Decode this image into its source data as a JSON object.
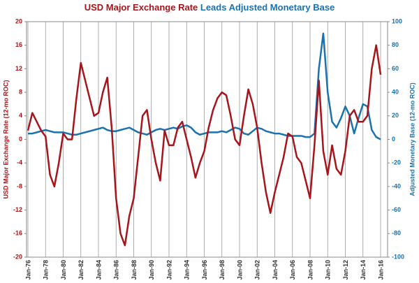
{
  "chart_data": {
    "type": "line",
    "title": [
      "USD Major Exchange Rate",
      "Leads Adjusted Monetary Base"
    ],
    "ylabel": "USD Major Exchange Rate (12-mo ROC)",
    "y2label": "Adjusted Monetary Base (12-mo ROC)",
    "x": [
      "Jan-76",
      "Jul-76",
      "Jan-77",
      "Jul-77",
      "Jan-78",
      "Jul-78",
      "Jan-79",
      "Jul-79",
      "Jan-80",
      "Jul-80",
      "Jan-81",
      "Jul-81",
      "Jan-82",
      "Jul-82",
      "Jan-83",
      "Jul-83",
      "Jan-84",
      "Jul-84",
      "Jan-85",
      "Jul-85",
      "Jan-86",
      "Jul-86",
      "Jan-87",
      "Jul-87",
      "Jan-88",
      "Jul-88",
      "Jan-89",
      "Jul-89",
      "Jan-90",
      "Jul-90",
      "Jan-91",
      "Jul-91",
      "Jan-92",
      "Jul-92",
      "Jan-93",
      "Jul-93",
      "Jan-94",
      "Jul-94",
      "Jan-95",
      "Jul-95",
      "Jan-96",
      "Jul-96",
      "Jan-97",
      "Jul-97",
      "Jan-98",
      "Jul-98",
      "Jan-99",
      "Jul-99",
      "Jan-00",
      "Jul-00",
      "Jan-01",
      "Jul-01",
      "Jan-02",
      "Jul-02",
      "Jan-03",
      "Jul-03",
      "Jan-04",
      "Jul-04",
      "Jan-05",
      "Jul-05",
      "Jan-06",
      "Jul-06",
      "Jan-07",
      "Jul-07",
      "Jan-08",
      "Jul-08",
      "Jan-09",
      "Jul-09",
      "Jan-10",
      "Jul-10",
      "Jan-11",
      "Jul-11",
      "Jan-12",
      "Jul-12",
      "Jan-13",
      "Jul-13",
      "Jan-14",
      "Jul-14",
      "Jan-15",
      "Jul-15",
      "Jan-16"
    ],
    "series": [
      {
        "name": "USD Major Exchange Rate",
        "color": "#a8141b",
        "values": [
          1.5,
          4.5,
          3,
          1.5,
          0.5,
          -6,
          -8,
          -4,
          1,
          0,
          0,
          7,
          13,
          10,
          7,
          4,
          4.5,
          8,
          10.5,
          2,
          -10,
          -16,
          -18,
          -13,
          -10,
          -3,
          4,
          5,
          0,
          -4,
          -7,
          1.5,
          -1,
          -1,
          2,
          3,
          0,
          -3,
          -6.5,
          -4,
          -2,
          2,
          5,
          7,
          8,
          7.5,
          4,
          0,
          -1,
          4,
          8.5,
          6,
          2,
          -4,
          -9,
          -12.5,
          -9,
          -6,
          -3,
          1,
          0.5,
          -3,
          -4,
          -7,
          -10,
          -1,
          10,
          -2,
          -6,
          -1,
          -5,
          -6,
          -2,
          4,
          5,
          3,
          3,
          4,
          12,
          16,
          11
        ]
      },
      {
        "name": "Leads Adjusted Monetary Base",
        "color": "#1a72b0",
        "axis": "y2",
        "values": [
          5,
          5,
          6,
          7,
          8,
          7,
          6,
          6,
          6,
          5,
          4,
          4,
          5,
          6,
          7,
          8,
          9,
          10,
          8,
          7,
          7,
          8,
          9,
          10,
          8,
          6,
          5,
          4,
          6,
          8,
          9,
          8,
          9,
          10,
          9,
          11,
          12,
          10,
          6,
          4,
          5,
          6,
          6,
          6,
          7,
          6,
          8,
          10,
          9,
          5,
          4,
          7,
          10,
          9,
          7,
          6,
          5,
          5,
          4,
          3,
          3,
          3,
          3,
          2,
          2,
          5,
          60,
          90,
          40,
          15,
          10,
          18,
          28,
          20,
          5,
          18,
          30,
          28,
          8,
          2,
          0
        ]
      }
    ],
    "ylim": [
      -20,
      20
    ],
    "yticks": [
      -20,
      -16,
      -12,
      -8,
      -4,
      0,
      4,
      8,
      12,
      16,
      20
    ],
    "y2lim": [
      -100,
      100
    ],
    "y2ticks": [
      -100,
      -80,
      -60,
      -40,
      -20,
      0,
      20,
      40,
      60,
      80,
      100
    ],
    "xgrid": true
  }
}
